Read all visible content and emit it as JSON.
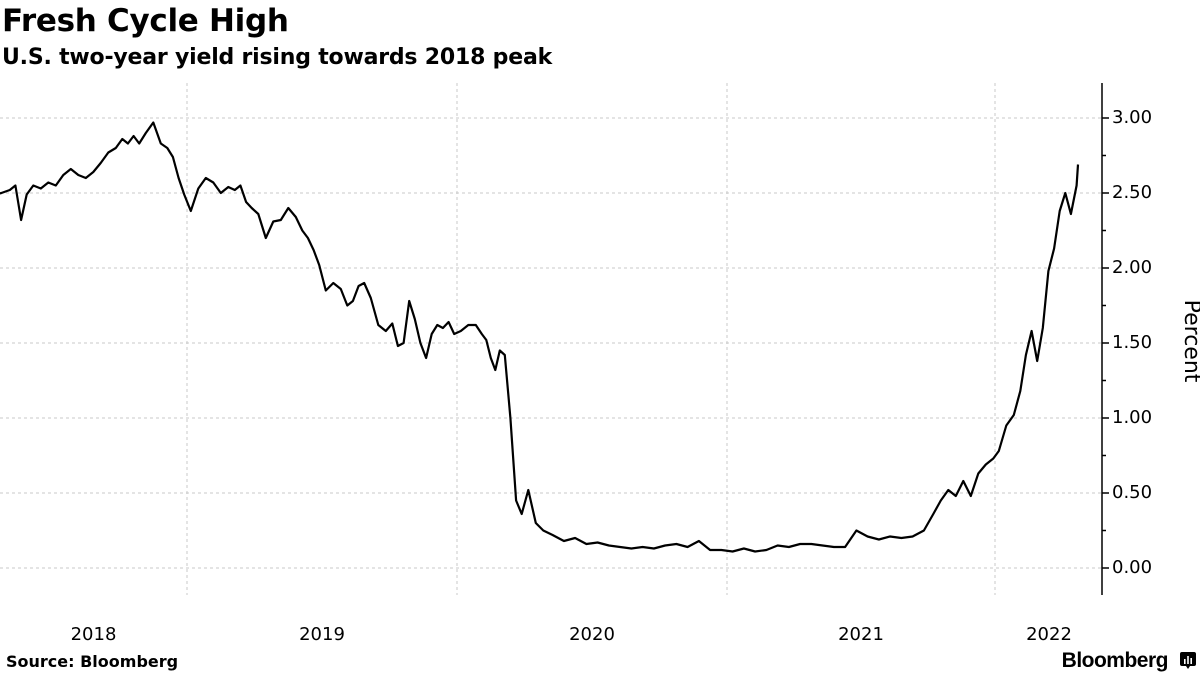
{
  "header": {
    "title": "Fresh Cycle High",
    "subtitle": "U.S. two-year yield rising towards 2018 peak"
  },
  "footer": {
    "source": "Source: Bloomberg",
    "brand": "Bloomberg",
    "brand_icon": "bloomberg-chart-icon"
  },
  "colors": {
    "line": "#000000",
    "grid": "#c8c8c8",
    "axis": "#000000",
    "background": "#ffffff"
  },
  "chart_data": {
    "type": "line",
    "title": "Fresh Cycle High",
    "subtitle": "U.S. two-year yield rising towards 2018 peak",
    "xlabel": "",
    "ylabel": "Percent",
    "ylim": [
      -0.15,
      3.25
    ],
    "yticks": [
      "0.00",
      "0.50",
      "1.00",
      "1.50",
      "2.00",
      "2.50",
      "3.00"
    ],
    "xticks": [
      "2018",
      "2019",
      "2020",
      "2021",
      "2022"
    ],
    "grid": true,
    "legend": null,
    "y_axis_position": "right",
    "series": [
      {
        "name": "U.S. two-year yield",
        "points": [
          [
            "2018-04",
            2.48
          ],
          [
            "2018-04",
            2.5
          ],
          [
            "2018-05",
            2.52
          ],
          [
            "2018-05",
            2.55
          ],
          [
            "2018-05",
            2.32
          ],
          [
            "2018-05",
            2.49
          ],
          [
            "2018-06",
            2.55
          ],
          [
            "2018-06",
            2.53
          ],
          [
            "2018-06",
            2.57
          ],
          [
            "2018-07",
            2.55
          ],
          [
            "2018-07",
            2.62
          ],
          [
            "2018-07",
            2.66
          ],
          [
            "2018-08",
            2.62
          ],
          [
            "2018-08",
            2.6
          ],
          [
            "2018-08",
            2.64
          ],
          [
            "2018-09",
            2.7
          ],
          [
            "2018-09",
            2.77
          ],
          [
            "2018-09",
            2.8
          ],
          [
            "2018-10",
            2.86
          ],
          [
            "2018-10",
            2.83
          ],
          [
            "2018-10",
            2.88
          ],
          [
            "2018-10",
            2.83
          ],
          [
            "2018-11",
            2.9
          ],
          [
            "2018-11",
            2.97
          ],
          [
            "2018-11",
            2.83
          ],
          [
            "2018-12",
            2.8
          ],
          [
            "2018-12",
            2.74
          ],
          [
            "2018-12",
            2.6
          ],
          [
            "2018-12",
            2.49
          ],
          [
            "2019-01",
            2.38
          ],
          [
            "2019-01",
            2.53
          ],
          [
            "2019-01",
            2.6
          ],
          [
            "2019-02",
            2.57
          ],
          [
            "2019-02",
            2.5
          ],
          [
            "2019-02",
            2.54
          ],
          [
            "2019-03",
            2.52
          ],
          [
            "2019-03",
            2.55
          ],
          [
            "2019-03",
            2.44
          ],
          [
            "2019-03",
            2.4
          ],
          [
            "2019-04",
            2.36
          ],
          [
            "2019-04",
            2.2
          ],
          [
            "2019-04",
            2.31
          ],
          [
            "2019-05",
            2.32
          ],
          [
            "2019-05",
            2.4
          ],
          [
            "2019-05",
            2.34
          ],
          [
            "2019-06",
            2.25
          ],
          [
            "2019-06",
            2.2
          ],
          [
            "2019-06",
            2.12
          ],
          [
            "2019-06",
            2.02
          ],
          [
            "2019-07",
            1.85
          ],
          [
            "2019-07",
            1.9
          ],
          [
            "2019-07",
            1.86
          ],
          [
            "2019-08",
            1.75
          ],
          [
            "2019-08",
            1.78
          ],
          [
            "2019-08",
            1.88
          ],
          [
            "2019-08",
            1.9
          ],
          [
            "2019-09",
            1.8
          ],
          [
            "2019-09",
            1.62
          ],
          [
            "2019-09",
            1.58
          ],
          [
            "2019-10",
            1.63
          ],
          [
            "2019-10",
            1.48
          ],
          [
            "2019-10",
            1.5
          ],
          [
            "2019-10",
            1.78
          ],
          [
            "2019-11",
            1.66
          ],
          [
            "2019-11",
            1.5
          ],
          [
            "2019-11",
            1.4
          ],
          [
            "2019-11",
            1.56
          ],
          [
            "2019-12",
            1.62
          ],
          [
            "2019-12",
            1.6
          ],
          [
            "2019-12",
            1.64
          ],
          [
            "2019-12",
            1.56
          ],
          [
            "2020-01",
            1.58
          ],
          [
            "2020-01",
            1.62
          ],
          [
            "2020-01",
            1.62
          ],
          [
            "2020-02",
            1.56
          ],
          [
            "2020-02",
            1.52
          ],
          [
            "2020-02",
            1.4
          ],
          [
            "2020-02",
            1.32
          ],
          [
            "2020-02",
            1.45
          ],
          [
            "2020-03",
            1.42
          ],
          [
            "2020-03",
            1.0
          ],
          [
            "2020-03",
            0.45
          ],
          [
            "2020-03",
            0.36
          ],
          [
            "2020-04",
            0.52
          ],
          [
            "2020-04",
            0.3
          ],
          [
            "2020-04",
            0.25
          ],
          [
            "2020-05",
            0.22
          ],
          [
            "2020-05",
            0.18
          ],
          [
            "2020-06",
            0.2
          ],
          [
            "2020-06",
            0.16
          ],
          [
            "2020-07",
            0.17
          ],
          [
            "2020-07",
            0.15
          ],
          [
            "2020-08",
            0.14
          ],
          [
            "2020-08",
            0.13
          ],
          [
            "2020-09",
            0.14
          ],
          [
            "2020-09",
            0.13
          ],
          [
            "2020-10",
            0.15
          ],
          [
            "2020-10",
            0.16
          ],
          [
            "2020-11",
            0.14
          ],
          [
            "2020-11",
            0.18
          ],
          [
            "2020-12",
            0.12
          ],
          [
            "2020-12",
            0.12
          ],
          [
            "2021-01",
            0.11
          ],
          [
            "2021-01",
            0.13
          ],
          [
            "2021-02",
            0.11
          ],
          [
            "2021-02",
            0.12
          ],
          [
            "2021-03",
            0.15
          ],
          [
            "2021-03",
            0.14
          ],
          [
            "2021-04",
            0.16
          ],
          [
            "2021-04",
            0.16
          ],
          [
            "2021-05",
            0.15
          ],
          [
            "2021-05",
            0.14
          ],
          [
            "2021-06",
            0.14
          ],
          [
            "2021-06",
            0.25
          ],
          [
            "2021-07",
            0.21
          ],
          [
            "2021-07",
            0.19
          ],
          [
            "2021-08",
            0.21
          ],
          [
            "2021-08",
            0.2
          ],
          [
            "2021-09",
            0.21
          ],
          [
            "2021-09",
            0.25
          ],
          [
            "2021-10",
            0.36
          ],
          [
            "2021-10",
            0.45
          ],
          [
            "2021-10",
            0.52
          ],
          [
            "2021-11",
            0.48
          ],
          [
            "2021-11",
            0.58
          ],
          [
            "2021-11",
            0.48
          ],
          [
            "2021-12",
            0.63
          ],
          [
            "2021-12",
            0.69
          ],
          [
            "2021-12",
            0.73
          ],
          [
            "2022-01",
            0.78
          ],
          [
            "2022-01",
            0.95
          ],
          [
            "2022-01",
            1.02
          ],
          [
            "2022-02",
            1.18
          ],
          [
            "2022-02",
            1.42
          ],
          [
            "2022-02",
            1.58
          ],
          [
            "2022-02",
            1.38
          ],
          [
            "2022-03",
            1.6
          ],
          [
            "2022-03",
            1.98
          ],
          [
            "2022-03",
            2.13
          ],
          [
            "2022-03",
            2.38
          ],
          [
            "2022-04",
            2.5
          ],
          [
            "2022-04",
            2.36
          ],
          [
            "2022-04",
            2.55
          ],
          [
            "2022-04",
            2.69
          ]
        ]
      }
    ],
    "last_value": 2.69,
    "peak_2018": 2.97
  }
}
